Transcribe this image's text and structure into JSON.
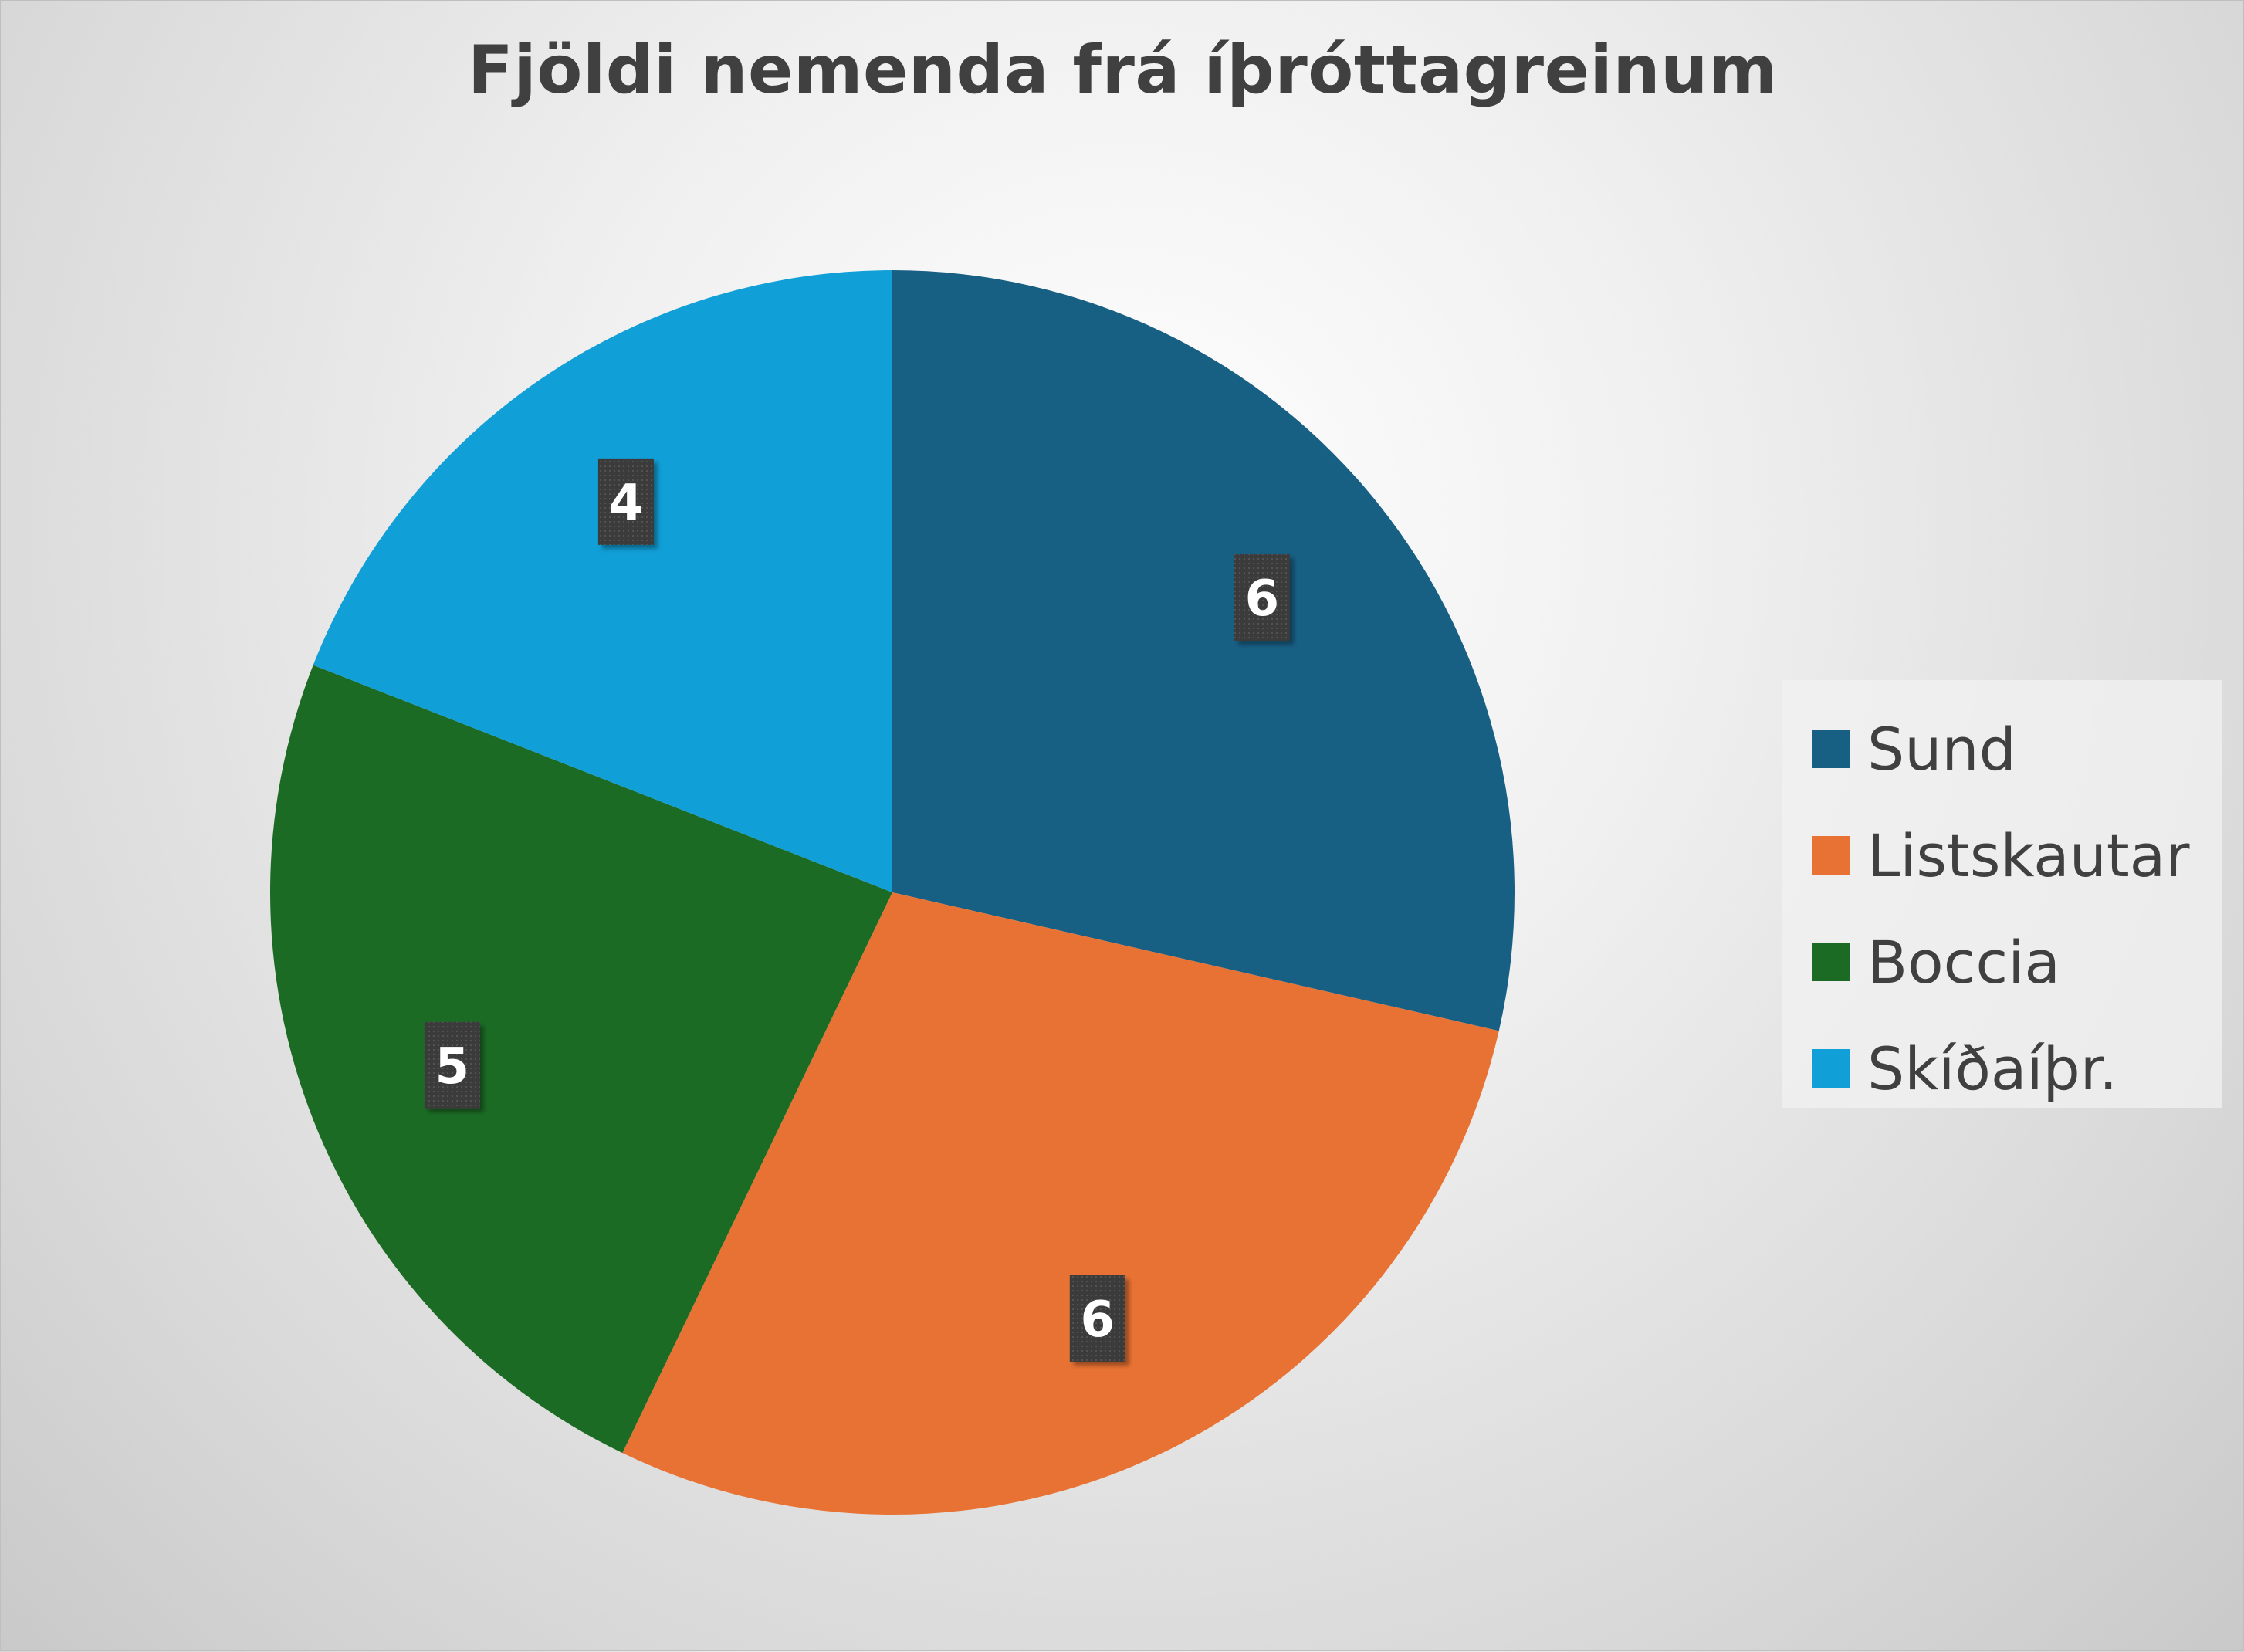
{
  "chart_data": {
    "type": "pie",
    "title": "Fjöldi nemenda frá íþróttagreinum",
    "categories": [
      "Sund",
      "Listskautar",
      "Boccia",
      "Skíðaíþr."
    ],
    "values": [
      6,
      6,
      5,
      4
    ],
    "colors": [
      "#185F84",
      "#E87233",
      "#1B6B25",
      "#119FD7"
    ],
    "data_labels": [
      "6",
      "6",
      "5",
      "4"
    ],
    "start_angle_deg": 0,
    "direction": "clockwise",
    "legend_position": "right"
  }
}
